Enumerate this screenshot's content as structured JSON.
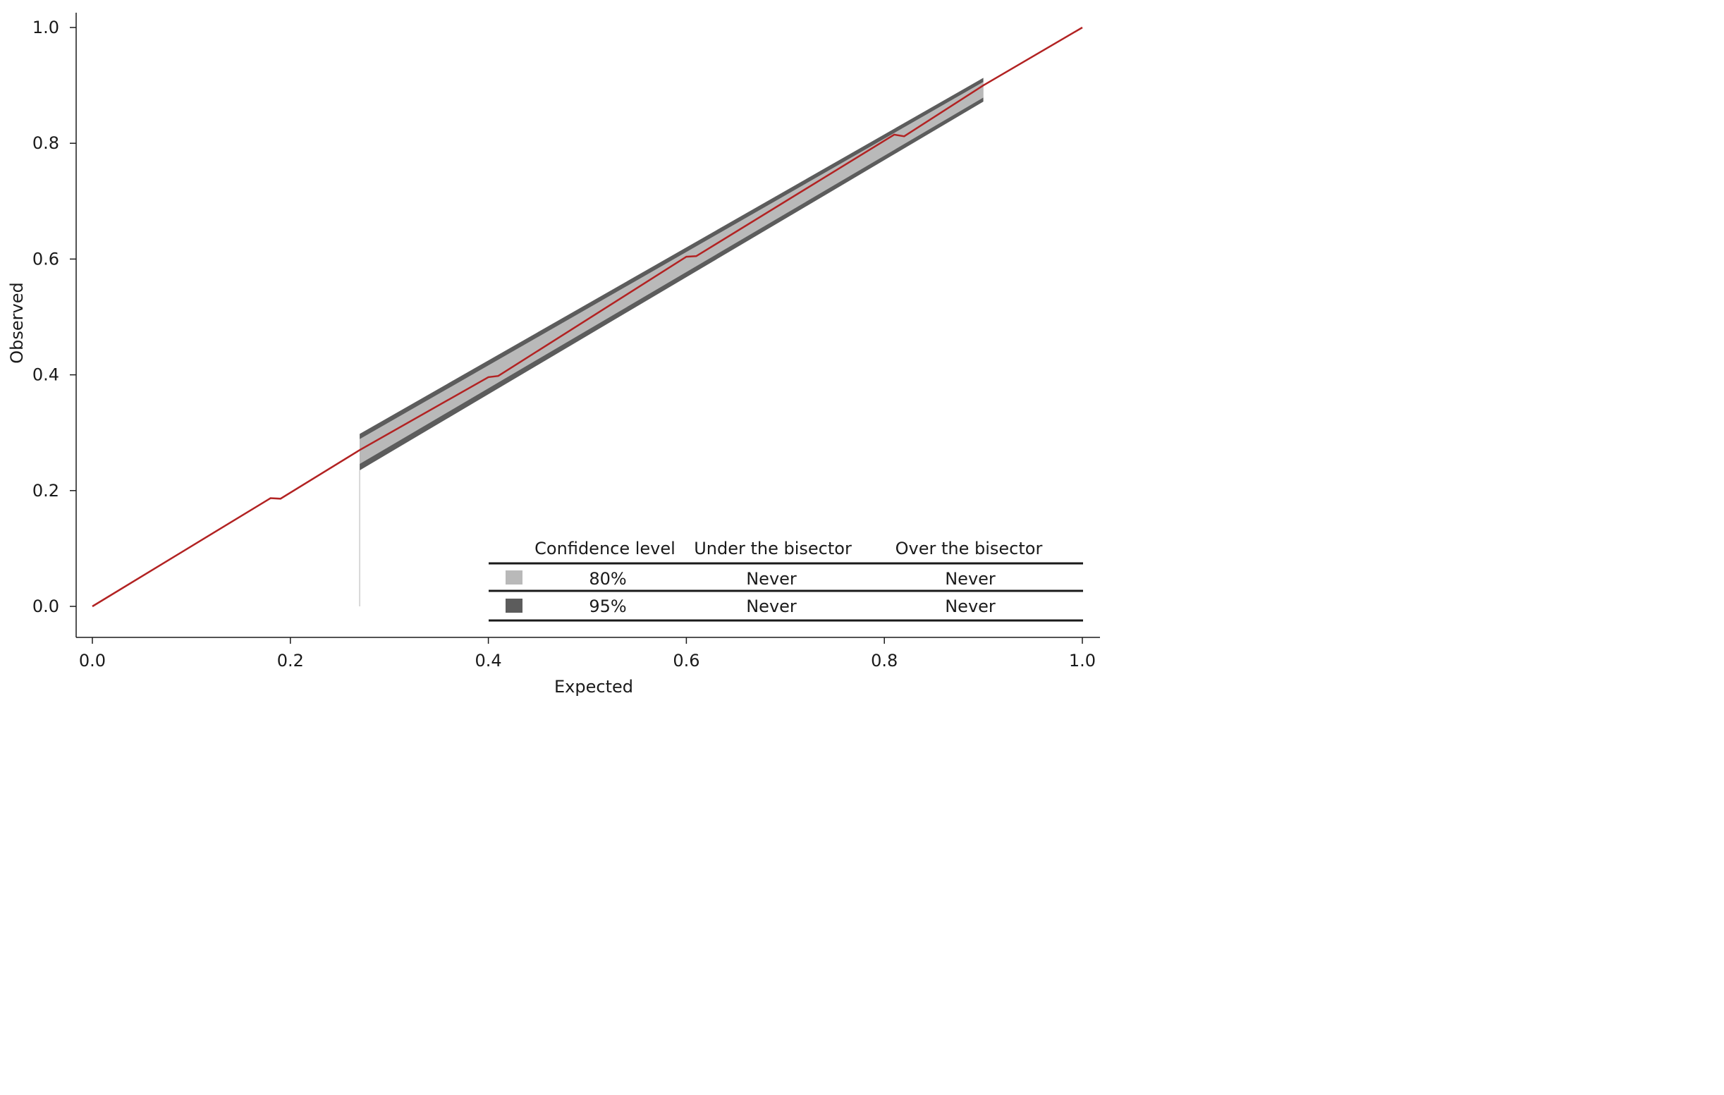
{
  "chart_data": {
    "type": "line",
    "xlabel": "Expected",
    "ylabel": "Observed",
    "xlim": [
      0.0,
      1.0
    ],
    "ylim": [
      0.0,
      1.0
    ],
    "x_ticks": [
      "0.0",
      "0.2",
      "0.4",
      "0.6",
      "0.8",
      "1.0"
    ],
    "y_ticks": [
      "0.0",
      "0.2",
      "0.4",
      "0.6",
      "0.8",
      "1.0"
    ],
    "grid": false,
    "series": [
      {
        "x": [
          0.0,
          0.18,
          0.19,
          0.27,
          0.4,
          0.41,
          0.6,
          0.61,
          0.81,
          0.82,
          0.9,
          1.0
        ],
        "y": [
          0.0,
          0.187,
          0.186,
          0.27,
          0.396,
          0.398,
          0.604,
          0.605,
          0.815,
          0.812,
          0.9,
          1.0
        ],
        "color": "#b22222"
      }
    ],
    "bands": [
      {
        "level": "95%",
        "color": "#5c5c5c",
        "x": [
          0.27,
          0.9
        ],
        "lower": [
          0.235,
          0.872
        ],
        "upper": [
          0.298,
          0.913
        ]
      },
      {
        "level": "80%",
        "color": "#b9b9b9",
        "x": [
          0.27,
          0.9
        ],
        "lower": [
          0.246,
          0.879
        ],
        "upper": [
          0.289,
          0.906
        ]
      }
    ],
    "legend": {
      "placement": "bottom-right",
      "headers": [
        "Confidence level",
        "Under the bisector",
        "Over the bisector"
      ],
      "rows": [
        {
          "level": "80%",
          "under": "Never",
          "over": "Never",
          "color": "#b9b9b9"
        },
        {
          "level": "95%",
          "under": "Never",
          "over": "Never",
          "color": "#5c5c5c"
        }
      ]
    }
  }
}
